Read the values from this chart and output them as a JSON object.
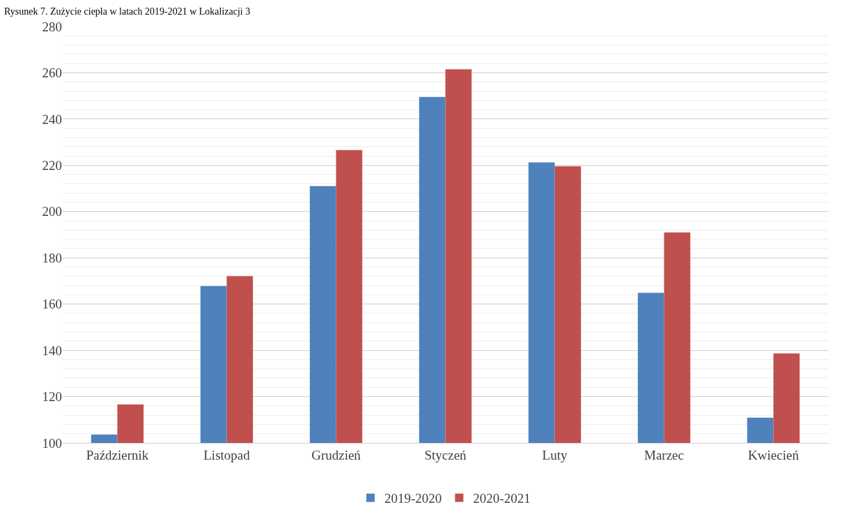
{
  "chart_data": {
    "type": "bar",
    "title": "Rysunek 7. Zużycie ciepła w latach 2019-2021 w Lokalizacji 3",
    "categories": [
      "Październik",
      "Listopad",
      "Grudzień",
      "Styczeń",
      "Luty",
      "Marzec",
      "Kwiecień"
    ],
    "series": [
      {
        "name": "2019-2020",
        "color": "#4f81bd",
        "values": [
          103.6,
          167.8,
          211,
          249.5,
          221.2,
          164.9,
          110.9
        ]
      },
      {
        "name": "2020-2021",
        "color": "#c0504d",
        "values": [
          116.6,
          172.1,
          226.6,
          261.5,
          219.6,
          191,
          138.7
        ]
      }
    ],
    "ylim": [
      100,
      280
    ],
    "yticks": [
      100,
      {
        "value": 104,
        "label": null
      },
      {
        "value": 108,
        "label": null
      },
      {
        "value": 112,
        "label": null
      },
      {
        "value": 116,
        "label": null
      },
      120,
      {
        "value": 124,
        "label": null
      },
      {
        "value": 128,
        "label": null
      },
      {
        "value": 132,
        "label": null
      },
      {
        "value": 136,
        "label": null
      },
      140,
      {
        "value": 144,
        "label": null
      },
      {
        "value": 148,
        "label": null
      },
      {
        "value": 152,
        "label": null
      },
      {
        "value": 156,
        "label": null
      },
      160,
      {
        "value": 164,
        "label": null
      },
      {
        "value": 168,
        "label": null
      },
      {
        "value": 172,
        "label": null
      },
      {
        "value": 176,
        "label": null
      },
      180,
      {
        "value": 184,
        "label": null
      },
      {
        "value": 188,
        "label": null
      },
      {
        "value": 192,
        "label": null
      },
      {
        "value": 196,
        "label": null
      },
      200,
      {
        "value": 204,
        "label": null
      },
      {
        "value": 208,
        "label": null
      },
      {
        "value": 212,
        "label": null
      },
      {
        "value": 216,
        "label": null
      },
      220,
      {
        "value": 224,
        "label": null
      },
      {
        "value": 228,
        "label": null
      },
      {
        "value": 232,
        "label": null
      },
      {
        "value": 236,
        "label": null
      },
      240,
      {
        "value": 244,
        "label": null
      },
      {
        "value": 248,
        "label": null
      },
      {
        "value": 252,
        "label": null
      },
      {
        "value": 256,
        "label": null
      },
      260,
      {
        "value": 264,
        "label": null
      },
      {
        "value": 268,
        "label": null
      },
      {
        "value": 272,
        "label": null
      },
      {
        "value": 276,
        "label": null
      },
      280
    ],
    "grid": "y",
    "legend": "bottom"
  }
}
